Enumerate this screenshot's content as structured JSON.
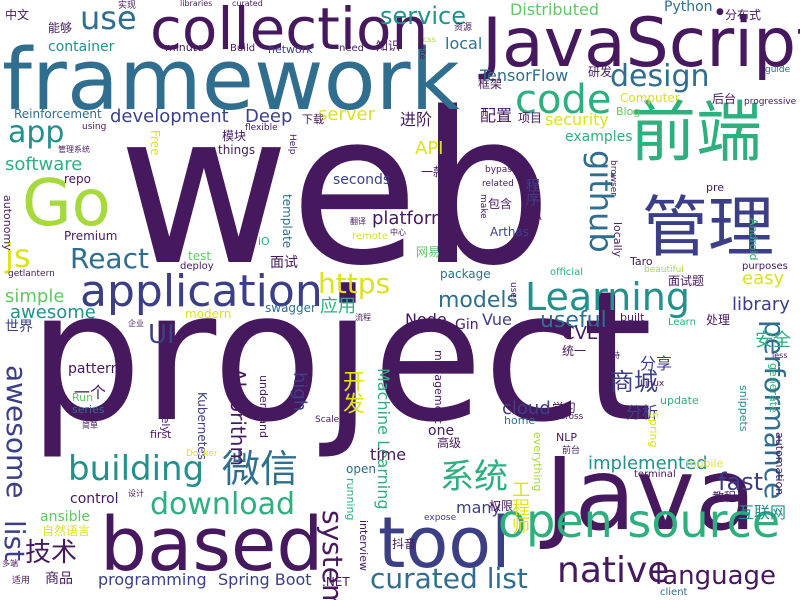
{
  "background": "#ffffff",
  "palette": {
    "p": "#46195f",
    "q": "#3d3f86",
    "r": "#2f6e8e",
    "s": "#22908c",
    "t": "#2eaf7e",
    "u": "#60c863",
    "v": "#a5d93c",
    "w": "#dde21c"
  },
  "words": [
    {
      "id": "web",
      "text": "web"
    },
    {
      "id": "project",
      "text": "project"
    },
    {
      "id": "framework",
      "text": "framework"
    },
    {
      "id": "javascript",
      "text": "JavaScript"
    },
    {
      "id": "collection",
      "text": "collection"
    },
    {
      "id": "java",
      "text": "Java"
    },
    {
      "id": "based",
      "text": "based"
    },
    {
      "id": "tool",
      "text": "tool"
    },
    {
      "id": "open-source",
      "text": "open source"
    },
    {
      "id": "qianduan",
      "text": "前端"
    },
    {
      "id": "guanli",
      "text": "管理"
    },
    {
      "id": "go",
      "text": "Go"
    },
    {
      "id": "application",
      "text": "application"
    },
    {
      "id": "code",
      "text": "code"
    },
    {
      "id": "learning",
      "text": "Learning"
    },
    {
      "id": "native",
      "text": "native"
    },
    {
      "id": "building",
      "text": "building"
    },
    {
      "id": "download",
      "text": "download"
    },
    {
      "id": "weixin",
      "text": "微信"
    },
    {
      "id": "xitong",
      "text": "系统"
    },
    {
      "id": "curated-list",
      "text": "curated list"
    },
    {
      "id": "language",
      "text": "language"
    },
    {
      "id": "use",
      "text": "use"
    },
    {
      "id": "design",
      "text": "design"
    },
    {
      "id": "service",
      "text": "service"
    },
    {
      "id": "app",
      "text": "app"
    },
    {
      "id": "react",
      "text": "React"
    },
    {
      "id": "js",
      "text": "js"
    },
    {
      "id": "github",
      "text": "github"
    },
    {
      "id": "performance",
      "text": "performance"
    },
    {
      "id": "list",
      "text": "list"
    },
    {
      "id": "awesome-v",
      "text": "awesome"
    },
    {
      "id": "system",
      "text": "system"
    },
    {
      "id": "https",
      "text": "https"
    },
    {
      "id": "jishu",
      "text": "技术"
    },
    {
      "id": "shangcheng",
      "text": "商城"
    },
    {
      "id": "fast",
      "text": "fast"
    },
    {
      "id": "ui",
      "text": "UI"
    },
    {
      "id": "models",
      "text": "models"
    },
    {
      "id": "useful",
      "text": "useful"
    },
    {
      "id": "development",
      "text": "development"
    },
    {
      "id": "software",
      "text": "software"
    },
    {
      "id": "simple",
      "text": "simple"
    },
    {
      "id": "awesome-h",
      "text": "awesome"
    },
    {
      "id": "distributed",
      "text": "Distributed"
    },
    {
      "id": "tensorflow",
      "text": "TensorFlow"
    },
    {
      "id": "api",
      "text": "API"
    },
    {
      "id": "deep",
      "text": "Deep"
    },
    {
      "id": "server",
      "text": "server"
    },
    {
      "id": "security",
      "text": "security"
    },
    {
      "id": "platform",
      "text": "platform"
    },
    {
      "id": "kaifa",
      "text": "开发"
    },
    {
      "id": "spring-boot",
      "text": "Spring Boot"
    },
    {
      "id": "programming",
      "text": "programming"
    },
    {
      "id": "algorithm",
      "text": "Algorithm"
    },
    {
      "id": "gongchengshi",
      "text": "工程师"
    },
    {
      "id": "implemented",
      "text": "implemented"
    },
    {
      "id": "library",
      "text": "library"
    },
    {
      "id": "easy",
      "text": "easy"
    },
    {
      "id": "cloud",
      "text": "cloud"
    },
    {
      "id": "container",
      "text": "container"
    },
    {
      "id": "local",
      "text": "local"
    },
    {
      "id": "machine-learning",
      "text": "Machine Learning"
    },
    {
      "id": "high",
      "text": "high"
    },
    {
      "id": "time",
      "text": "time"
    },
    {
      "id": "many",
      "text": "many"
    },
    {
      "id": "cve",
      "text": "CVE"
    },
    {
      "id": "node",
      "text": "Node"
    },
    {
      "id": "vue",
      "text": "Vue"
    },
    {
      "id": "gin",
      "text": "Gin"
    },
    {
      "id": "patterns",
      "text": "patterns"
    },
    {
      "id": "control",
      "text": "control"
    },
    {
      "id": "ansible",
      "text": "ansible"
    },
    {
      "id": "yingyong",
      "text": "应用"
    },
    {
      "id": "anquan",
      "text": "安全"
    },
    {
      "id": "fenxiang",
      "text": "分享"
    },
    {
      "id": "fenxi",
      "text": "分析"
    },
    {
      "id": "hulianwang",
      "text": "互联网"
    },
    {
      "id": "jinjie",
      "text": "进阶"
    },
    {
      "id": "peizhi",
      "text": "配置"
    },
    {
      "id": "xiangmu",
      "text": "项目"
    },
    {
      "id": "mokuai",
      "text": "模块"
    },
    {
      "id": "xiazai",
      "text": "下载"
    },
    {
      "id": "chengxu",
      "text": "程序"
    },
    {
      "id": "kuangjia",
      "text": "框架"
    },
    {
      "id": "yanfa",
      "text": "研发"
    },
    {
      "id": "houtai",
      "text": "后台"
    },
    {
      "id": "mianshi",
      "text": "面试"
    },
    {
      "id": "mianshiti",
      "text": "面试题"
    },
    {
      "id": "shijie",
      "text": "世界"
    },
    {
      "id": "yige",
      "text": "一个"
    },
    {
      "id": "shangpin",
      "text": "商品"
    },
    {
      "id": "ziranyuyan",
      "text": "自然语言"
    },
    {
      "id": "douyin",
      "text": "抖音"
    },
    {
      "id": "quanxian",
      "text": "权限"
    },
    {
      "id": "jiaocheng",
      "text": "教程"
    },
    {
      "id": "xuexi",
      "text": "学习"
    },
    {
      "id": "gaoji",
      "text": "高级"
    },
    {
      "id": "tongyi",
      "text": "统一"
    },
    {
      "id": "chuli",
      "text": "处理"
    },
    {
      "id": "nengou",
      "text": "能够"
    },
    {
      "id": "zhongwen",
      "text": "中文"
    },
    {
      "id": "zhishi",
      "text": "知识"
    },
    {
      "id": "fenbushi",
      "text": "分布式"
    },
    {
      "id": "yikuan",
      "text": "一款"
    },
    {
      "id": "baohan",
      "text": "包含"
    },
    {
      "id": "wangyi",
      "text": "网易"
    },
    {
      "id": "python",
      "text": "Python"
    },
    {
      "id": "computer",
      "text": "Computer"
    },
    {
      "id": "blog",
      "text": "Blog"
    },
    {
      "id": "examples",
      "text": "examples"
    },
    {
      "id": "reinforcement",
      "text": "Reinforcement"
    },
    {
      "id": "repo",
      "text": "repo"
    },
    {
      "id": "premium",
      "text": "Premium"
    },
    {
      "id": "seconds",
      "text": "seconds"
    },
    {
      "id": "template",
      "text": "template"
    },
    {
      "id": "swagger",
      "text": "swagger"
    },
    {
      "id": "modern",
      "text": "modern"
    },
    {
      "id": "package",
      "text": "package"
    },
    {
      "id": "arthas",
      "text": "Arthas"
    },
    {
      "id": "things",
      "text": "things"
    },
    {
      "id": "free",
      "text": "Free"
    },
    {
      "id": "website",
      "text": "website"
    },
    {
      "id": "test",
      "text": "test"
    },
    {
      "id": "deploy",
      "text": "deploy"
    },
    {
      "id": "data",
      "text": "data"
    },
    {
      "id": "remote",
      "text": "remote"
    },
    {
      "id": "home",
      "text": "home"
    },
    {
      "id": "one",
      "text": "one"
    },
    {
      "id": "open",
      "text": "open"
    },
    {
      "id": "kubernetes",
      "text": "Kubernetes"
    },
    {
      "id": "series",
      "text": "series"
    },
    {
      "id": "first",
      "text": "first"
    },
    {
      "id": "run",
      "text": "Run"
    },
    {
      "id": "nlp",
      "text": "NLP"
    },
    {
      "id": "net",
      "text": ".NET"
    },
    {
      "id": "client",
      "text": "client"
    },
    {
      "id": "mobile",
      "text": "mobile"
    },
    {
      "id": "update",
      "text": "update"
    },
    {
      "id": "built",
      "text": "built"
    },
    {
      "id": "learn",
      "text": "Learn"
    },
    {
      "id": "official",
      "text": "official"
    },
    {
      "id": "beautiful",
      "text": "beautiful"
    },
    {
      "id": "purposes",
      "text": "purposes"
    },
    {
      "id": "android",
      "text": "Android"
    },
    {
      "id": "taro",
      "text": "Taro"
    },
    {
      "id": "locally",
      "text": "locally"
    },
    {
      "id": "minute",
      "text": "minute"
    },
    {
      "id": "build",
      "text": "Build"
    },
    {
      "id": "network",
      "text": "network"
    },
    {
      "id": "need",
      "text": "need"
    },
    {
      "id": "guide",
      "text": "guide"
    },
    {
      "id": "progressive",
      "text": "progressive"
    },
    {
      "id": "pre",
      "text": "pre"
    },
    {
      "id": "spring",
      "text": "Spring"
    },
    {
      "id": "linux",
      "text": "Linux"
    },
    {
      "id": "generate",
      "text": "generate"
    },
    {
      "id": "automation",
      "text": "automation"
    },
    {
      "id": "snippets",
      "text": "snippets"
    },
    {
      "id": "completely",
      "text": "completely"
    },
    {
      "id": "understand",
      "text": "understand"
    },
    {
      "id": "management",
      "text": "management"
    },
    {
      "id": "running",
      "text": "running"
    },
    {
      "id": "interview",
      "text": "interview"
    },
    {
      "id": "everything",
      "text": "everything"
    },
    {
      "id": "autonomy",
      "text": "autonomy"
    },
    {
      "id": "getlantern",
      "text": "getlantern"
    },
    {
      "id": "terminal",
      "text": "terminal"
    },
    {
      "id": "expose",
      "text": "expose"
    },
    {
      "id": "cross",
      "text": "cross"
    },
    {
      "id": "scale",
      "text": "Scale"
    },
    {
      "id": "docker",
      "text": "Docker"
    },
    {
      "id": "user",
      "text": "user"
    },
    {
      "id": "bypass",
      "text": "bypass"
    },
    {
      "id": "related",
      "text": "related"
    },
    {
      "id": "make",
      "text": "make"
    },
    {
      "id": "browser",
      "text": "browser"
    },
    {
      "id": "flexible",
      "text": "flexible"
    },
    {
      "id": "help",
      "text": "Help"
    },
    {
      "id": "using",
      "text": "using"
    },
    {
      "id": "less",
      "text": "less"
    },
    {
      "id": "site",
      "text": "site"
    },
    {
      "id": "css",
      "text": "css"
    },
    {
      "id": "io",
      "text": "iO"
    },
    {
      "id": "goa",
      "text": "GoA"
    },
    {
      "id": "libraries",
      "text": "libraries"
    },
    {
      "id": "curated",
      "text": "curated"
    },
    {
      "id": "shixian",
      "text": "实现"
    },
    {
      "id": "ziyuan",
      "text": "资源"
    },
    {
      "id": "guanlixitong",
      "text": "管理系统"
    },
    {
      "id": "jiandan",
      "text": "简单"
    },
    {
      "id": "qiye",
      "text": "企业"
    },
    {
      "id": "shiyong",
      "text": "适用"
    },
    {
      "id": "duoge",
      "text": "多端"
    },
    {
      "id": "sheji",
      "text": "设计"
    },
    {
      "id": "fanyi",
      "text": "翻译"
    },
    {
      "id": "zhongxin",
      "text": "中心"
    },
    {
      "id": "liucheng",
      "text": "流程"
    },
    {
      "id": "zhichi",
      "text": "支持"
    },
    {
      "id": "qiantai",
      "text": "前台"
    },
    {
      "id": "dot",
      "text": "●"
    }
  ]
}
